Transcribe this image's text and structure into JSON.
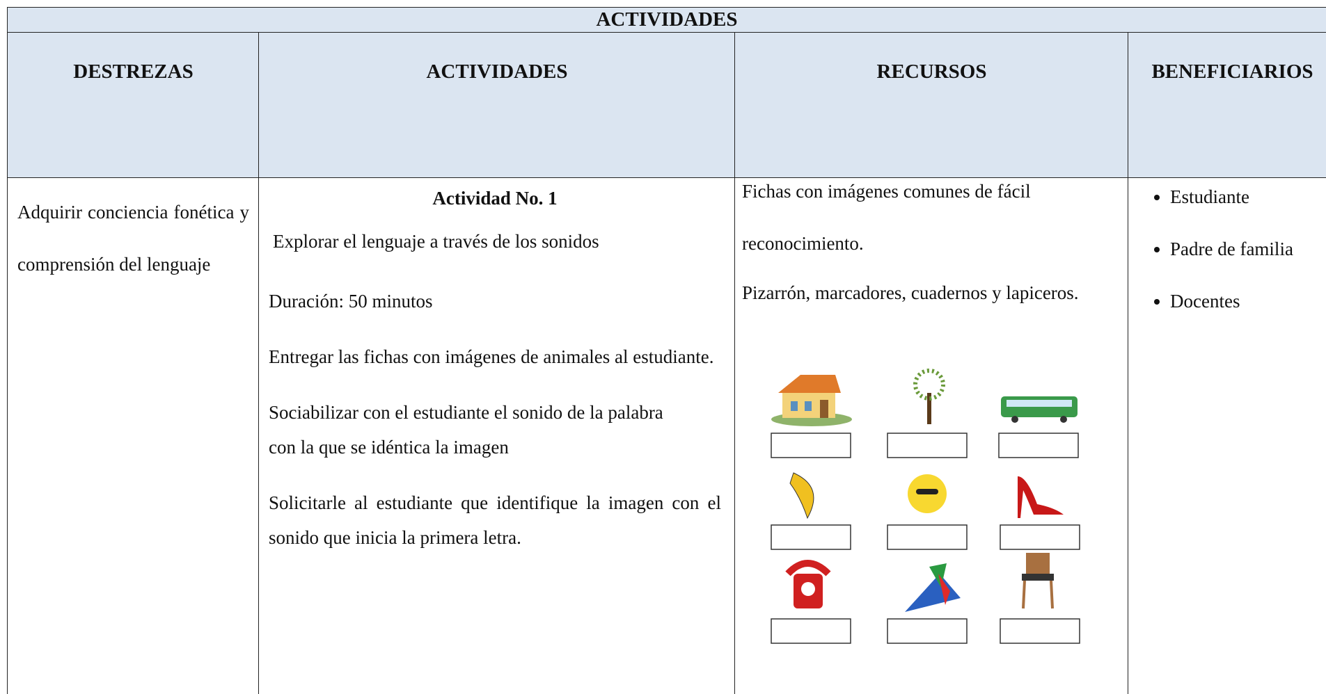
{
  "header": {
    "title": "ACTIVIDADES"
  },
  "columns": [
    "DESTREZAS",
    "ACTIVIDADES",
    "RECURSOS",
    "BENEFICIARIOS"
  ],
  "destrezas": "Adquirir conciencia fonética y comprensión del lenguaje",
  "actividad": {
    "title": "Actividad No. 1",
    "subtitle": "Explorar el lenguaje a través de los sonidos",
    "duration": "Duración: 50 minutos",
    "steps": [
      "Entregar las fichas con imágenes de animales al estudiante.",
      "Sociabilizar con el estudiante el sonido de la palabra con la que se idéntica la imagen",
      "Solicitarle al estudiante que identifique la imagen con el sonido que inicia la primera letra."
    ]
  },
  "recursos": [
    "Fichas con imágenes comunes de fácil reconocimiento.",
    "Pizarrón, marcadores, cuadernos y lapiceros."
  ],
  "beneficiarios": [
    "Estudiante",
    "Padre de familia",
    "Docentes"
  ]
}
